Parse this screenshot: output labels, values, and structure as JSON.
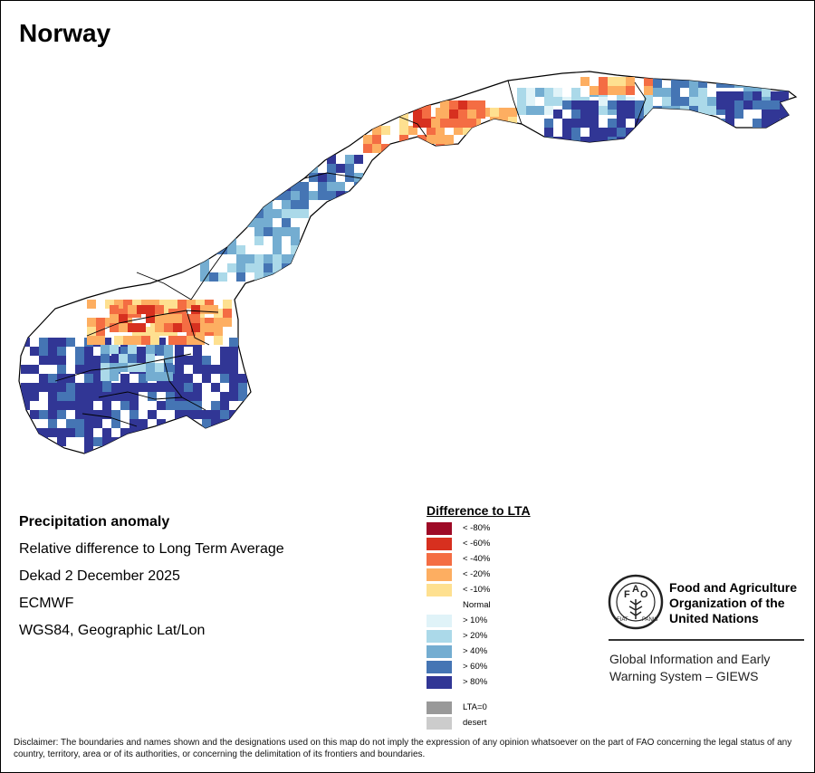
{
  "map_title": "Norway",
  "info": {
    "heading": "Precipitation anomaly",
    "line1": "Relative difference to Long Term Average",
    "line2": "Dekad 2 December 2025",
    "line3": "ECMWF",
    "line4": "WGS84, Geographic Lat/Lon"
  },
  "legend": {
    "title": "Difference to LTA",
    "items": [
      {
        "label": "< -80%",
        "color": "#9e0a26"
      },
      {
        "label": "< -60%",
        "color": "#d7301f"
      },
      {
        "label": "< -40%",
        "color": "#f46d43"
      },
      {
        "label": "< -20%",
        "color": "#fdae61"
      },
      {
        "label": "< -10%",
        "color": "#fee090"
      },
      {
        "label": "Normal",
        "color": "#ffffff"
      },
      {
        "label": "> 10%",
        "color": "#e0f3f8"
      },
      {
        "label": "> 20%",
        "color": "#abd9e9"
      },
      {
        "label": "> 40%",
        "color": "#74add1"
      },
      {
        "label": "> 60%",
        "color": "#4575b4"
      },
      {
        "label": "> 80%",
        "color": "#313695"
      }
    ],
    "extra": [
      {
        "label": "LTA=0",
        "color": "#999999"
      },
      {
        "label": "desert",
        "color": "#cccccc"
      }
    ]
  },
  "fao": {
    "name_line1": "Food and Agriculture",
    "name_line2": "Organization of the",
    "name_line3": "United Nations",
    "logo_text": "FAO FIAT PANIS"
  },
  "giews": {
    "line1": "Global Information and Early",
    "line2": "Warning System – GIEWS"
  },
  "disclaimer": "Disclaimer: The boundaries and names shown and the designations used on this map do not imply the expression of any opinion whatsoever on the part of FAO concerning the legal status of any country, territory, area or of its authorities, or concerning the delimitation of its frontiers and boundaries."
}
